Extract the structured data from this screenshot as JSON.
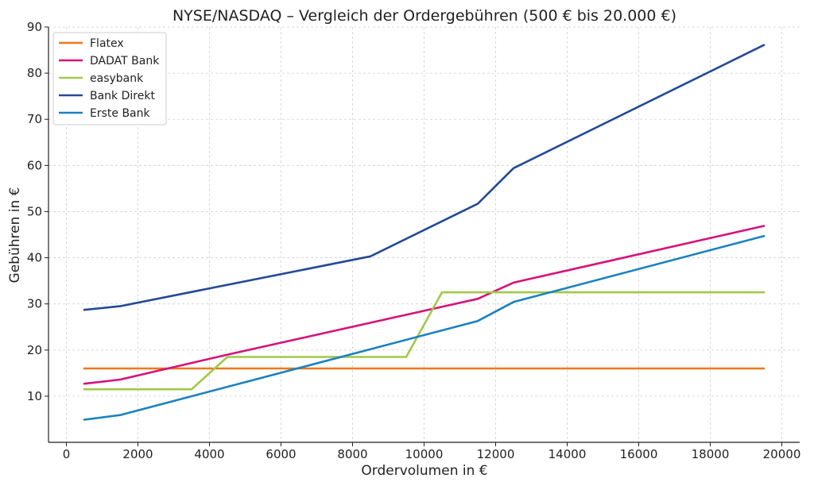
{
  "chart_data": {
    "type": "line",
    "title": "NYSE/NASDAQ – Vergleich der Ordergebühren (500 € bis 20.000 €)",
    "xlabel": "Ordervolumen in €",
    "ylabel": "Gebühren in €",
    "xlim": [
      -500,
      20500
    ],
    "ylim": [
      0,
      90
    ],
    "xticks": [
      0,
      2000,
      4000,
      6000,
      8000,
      10000,
      12000,
      14000,
      16000,
      18000,
      20000
    ],
    "yticks": [
      10,
      20,
      30,
      40,
      50,
      60,
      70,
      80,
      90
    ],
    "grid": true,
    "legend_position": "top-left",
    "series": [
      {
        "name": "Flatex",
        "color": "#f07818",
        "x": [
          500,
          19500
        ],
        "y": [
          16,
          16
        ]
      },
      {
        "name": "DADAT Bank",
        "color": "#d6127a",
        "x": [
          500,
          1500,
          4500,
          11500,
          12500,
          19500
        ],
        "y": [
          12.7,
          13.6,
          19.0,
          31.1,
          34.6,
          46.9
        ]
      },
      {
        "name": "easybank",
        "color": "#a2c84a",
        "x": [
          500,
          3500,
          4500,
          9500,
          10500,
          19500
        ],
        "y": [
          11.5,
          11.5,
          18.5,
          18.5,
          32.5,
          32.5
        ]
      },
      {
        "name": "Bank Direkt",
        "color": "#234a96",
        "x": [
          500,
          1500,
          8500,
          11500,
          12500,
          19500
        ],
        "y": [
          28.7,
          29.5,
          40.3,
          51.7,
          59.4,
          86.1
        ]
      },
      {
        "name": "Erste Bank",
        "color": "#1a82be",
        "x": [
          500,
          1500,
          11500,
          12500,
          19500
        ],
        "y": [
          4.9,
          5.9,
          26.3,
          30.4,
          44.7
        ]
      }
    ]
  }
}
